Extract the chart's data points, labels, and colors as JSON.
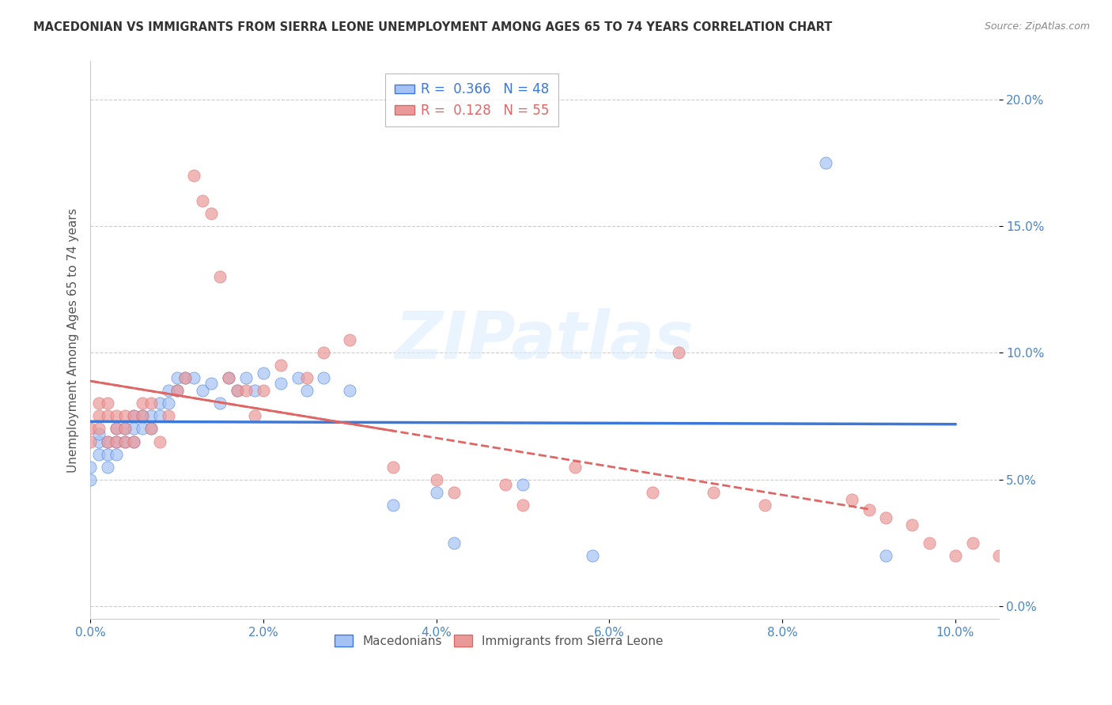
{
  "title": "MACEDONIAN VS IMMIGRANTS FROM SIERRA LEONE UNEMPLOYMENT AMONG AGES 65 TO 74 YEARS CORRELATION CHART",
  "source": "Source: ZipAtlas.com",
  "ylabel": "Unemployment Among Ages 65 to 74 years",
  "R_macedonian": 0.366,
  "N_macedonian": 48,
  "R_sierraleone": 0.128,
  "N_sierraleone": 55,
  "color_macedonian": "#a4c2f4",
  "color_sierraleone": "#ea9999",
  "color_line_macedonian": "#3c78d8",
  "color_line_sierraleone": "#e06666",
  "background_color": "#ffffff",
  "grid_color": "#cccccc",
  "xlim": [
    0.0,
    0.105
  ],
  "ylim": [
    -0.005,
    0.215
  ],
  "x_ticks": [
    0.0,
    0.02,
    0.04,
    0.06,
    0.08,
    0.1
  ],
  "y_ticks": [
    0.0,
    0.05,
    0.1,
    0.15,
    0.2
  ],
  "mac_x": [
    0.0,
    0.0,
    0.001,
    0.001,
    0.001,
    0.002,
    0.002,
    0.002,
    0.003,
    0.003,
    0.003,
    0.004,
    0.004,
    0.005,
    0.005,
    0.005,
    0.006,
    0.006,
    0.007,
    0.007,
    0.008,
    0.008,
    0.009,
    0.009,
    0.01,
    0.01,
    0.011,
    0.012,
    0.013,
    0.014,
    0.015,
    0.016,
    0.017,
    0.018,
    0.019,
    0.02,
    0.022,
    0.024,
    0.025,
    0.027,
    0.03,
    0.035,
    0.04,
    0.042,
    0.05,
    0.058,
    0.085,
    0.092
  ],
  "mac_y": [
    0.05,
    0.055,
    0.06,
    0.065,
    0.068,
    0.055,
    0.06,
    0.065,
    0.06,
    0.065,
    0.07,
    0.065,
    0.07,
    0.065,
    0.07,
    0.075,
    0.07,
    0.075,
    0.07,
    0.075,
    0.075,
    0.08,
    0.08,
    0.085,
    0.085,
    0.09,
    0.09,
    0.09,
    0.085,
    0.088,
    0.08,
    0.09,
    0.085,
    0.09,
    0.085,
    0.092,
    0.088,
    0.09,
    0.085,
    0.09,
    0.085,
    0.04,
    0.045,
    0.025,
    0.048,
    0.02,
    0.175,
    0.02
  ],
  "sl_x": [
    0.0,
    0.0,
    0.001,
    0.001,
    0.001,
    0.002,
    0.002,
    0.002,
    0.003,
    0.003,
    0.003,
    0.004,
    0.004,
    0.004,
    0.005,
    0.005,
    0.006,
    0.006,
    0.007,
    0.007,
    0.008,
    0.009,
    0.01,
    0.011,
    0.012,
    0.013,
    0.014,
    0.015,
    0.016,
    0.017,
    0.018,
    0.019,
    0.02,
    0.022,
    0.025,
    0.027,
    0.03,
    0.035,
    0.04,
    0.042,
    0.048,
    0.05,
    0.056,
    0.065,
    0.068,
    0.072,
    0.078,
    0.088,
    0.09,
    0.092,
    0.095,
    0.097,
    0.1,
    0.102,
    0.105
  ],
  "sl_y": [
    0.065,
    0.07,
    0.07,
    0.075,
    0.08,
    0.075,
    0.08,
    0.065,
    0.07,
    0.065,
    0.075,
    0.075,
    0.065,
    0.07,
    0.075,
    0.065,
    0.08,
    0.075,
    0.07,
    0.08,
    0.065,
    0.075,
    0.085,
    0.09,
    0.17,
    0.16,
    0.155,
    0.13,
    0.09,
    0.085,
    0.085,
    0.075,
    0.085,
    0.095,
    0.09,
    0.1,
    0.105,
    0.055,
    0.05,
    0.045,
    0.048,
    0.04,
    0.055,
    0.045,
    0.1,
    0.045,
    0.04,
    0.042,
    0.038,
    0.035,
    0.032,
    0.025,
    0.02,
    0.025,
    0.02
  ],
  "watermark": "ZIPatlas"
}
